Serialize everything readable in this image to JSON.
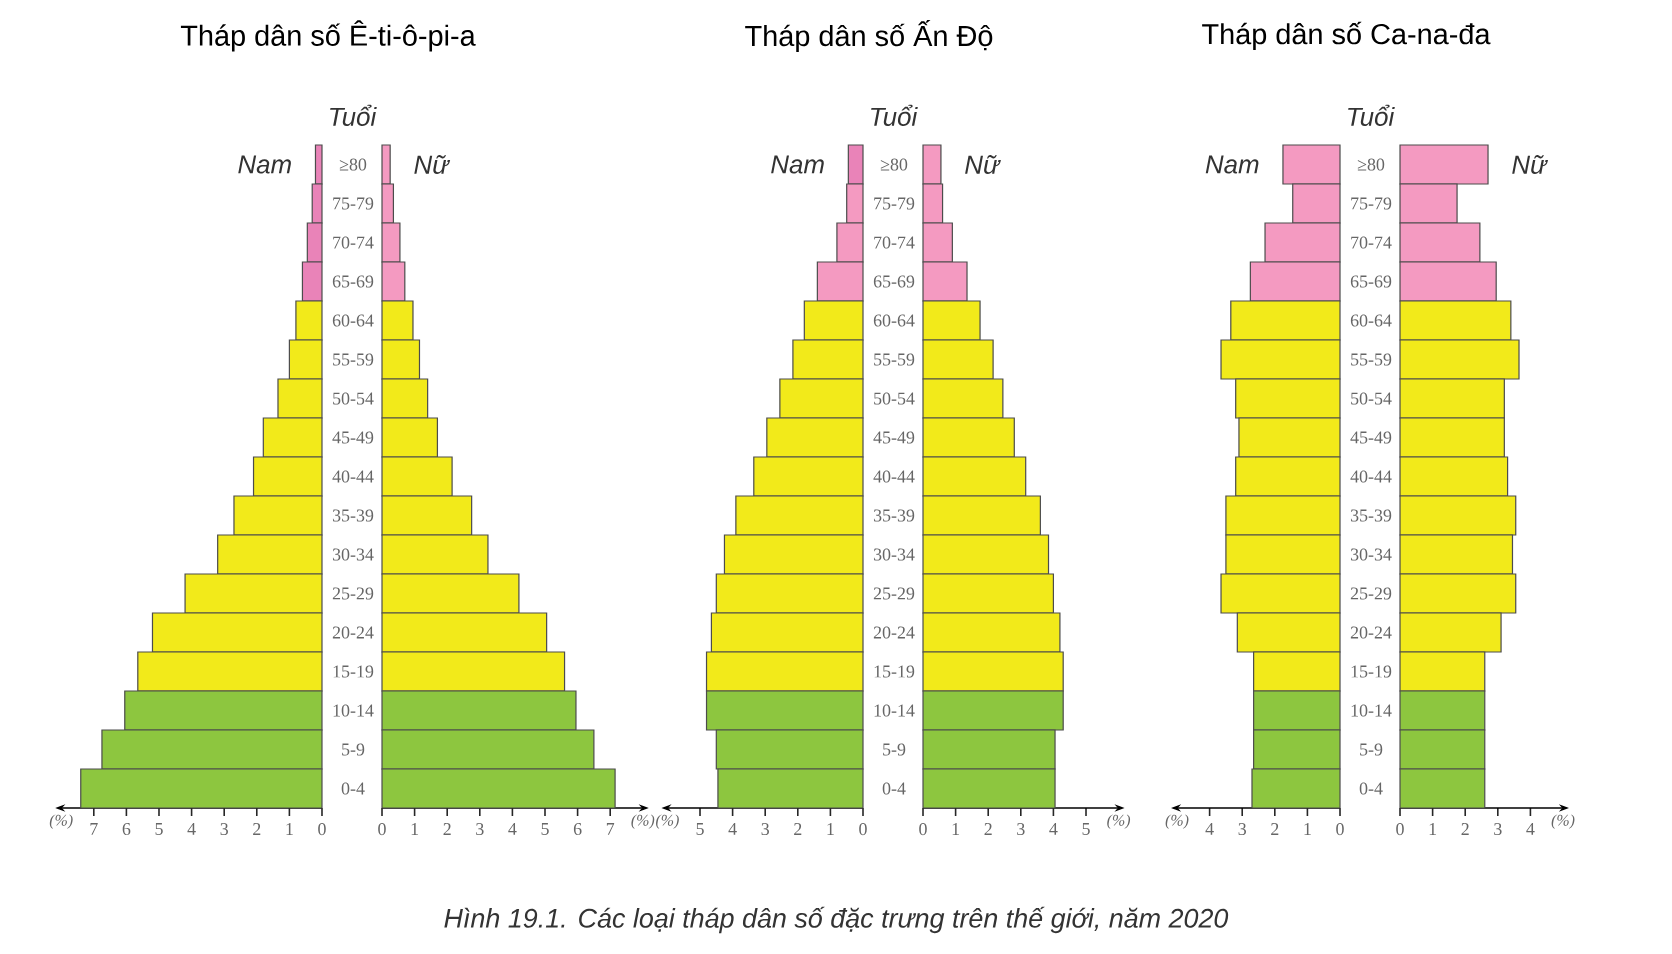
{
  "chart_data": [
    {
      "type": "bar",
      "orientation": "horizontal",
      "title": "Tháp dân số Ê-ti-ô-pi-a",
      "xlabel": "(%)",
      "annotations": [
        "Hình 19.1. Các loại tháp dân số đặc trưng trên thế giới, năm 2020"
      ],
      "categories": [
        "≥80",
        "75-79",
        "70-74",
        "65-69",
        "60-64",
        "55-59",
        "50-54",
        "45-49",
        "40-44",
        "35-39",
        "30-34",
        "25-29",
        "20-24",
        "15-19",
        "10-14",
        "5-9",
        "0-4"
      ],
      "series": [
        {
          "name": "Nam",
          "colors": [
            "#e983b8",
            "#e983b8",
            "#e983b8",
            "#e983b8",
            "#f2ea1a",
            "#f2ea1a",
            "#f2ea1a",
            "#f2ea1a",
            "#f2ea1a",
            "#f2ea1a",
            "#f2ea1a",
            "#f2ea1a",
            "#f2ea1a",
            "#f2ea1a",
            "#8dc63f",
            "#8dc63f",
            "#8dc63f"
          ],
          "values": [
            0.2,
            0.3,
            0.45,
            0.6,
            0.8,
            1.0,
            1.35,
            1.8,
            2.1,
            2.7,
            3.2,
            4.2,
            5.2,
            5.65,
            6.05,
            6.75,
            7.4
          ]
        }
      ],
      "xlim": [
        8,
        0
      ],
      "xticks": [
        0,
        1,
        2,
        3,
        4,
        5,
        6,
        7
      ],
      "tick_labels": "x"
    },
    {
      "type": "bar",
      "orientation": "horizontal",
      "xlabel": "(%)",
      "ylabel": "Tuổi",
      "categories": [
        "≥80",
        "75-79",
        "70-74",
        "65-69",
        "60-64",
        "55-59",
        "50-54",
        "45-49",
        "40-44",
        "35-39",
        "30-34",
        "25-29",
        "20-24",
        "15-19",
        "10-14",
        "5-9",
        "0-4"
      ],
      "series": [
        {
          "name": "Nữ",
          "colors": [
            "#f49ac1",
            "#f49ac1",
            "#f49ac1",
            "#f49ac1",
            "#f2ea1a",
            "#f2ea1a",
            "#f2ea1a",
            "#f2ea1a",
            "#f2ea1a",
            "#f2ea1a",
            "#f2ea1a",
            "#f2ea1a",
            "#f2ea1a",
            "#f2ea1a",
            "#8dc63f",
            "#8dc63f",
            "#8dc63f"
          ],
          "values": [
            0.25,
            0.35,
            0.55,
            0.7,
            0.95,
            1.15,
            1.4,
            1.7,
            2.15,
            2.75,
            3.25,
            4.2,
            5.05,
            5.6,
            5.95,
            6.5,
            7.15
          ]
        }
      ],
      "xlim": [
        0,
        8
      ],
      "xticks": [
        0,
        1,
        2,
        3,
        4,
        5,
        6,
        7
      ]
    },
    {
      "type": "bar",
      "orientation": "horizontal",
      "title": "Tháp dân số Ấn Độ",
      "xlabel": "(%)",
      "categories": [
        "≥80",
        "75-79",
        "70-74",
        "65-69",
        "60-64",
        "55-59",
        "50-54",
        "45-49",
        "40-44",
        "35-39",
        "30-34",
        "25-29",
        "20-24",
        "15-19",
        "10-14",
        "5-9",
        "0-4"
      ],
      "series": [
        {
          "name": "Nam",
          "colors": [
            "#e983b8",
            "#f49ac1",
            "#f49ac1",
            "#f49ac1",
            "#f2ea1a",
            "#f2ea1a",
            "#f2ea1a",
            "#f2ea1a",
            "#f2ea1a",
            "#f2ea1a",
            "#f2ea1a",
            "#f2ea1a",
            "#f2ea1a",
            "#f2ea1a",
            "#8dc63f",
            "#8dc63f",
            "#8dc63f"
          ],
          "values": [
            0.45,
            0.5,
            0.8,
            1.4,
            1.8,
            2.15,
            2.55,
            2.95,
            3.35,
            3.9,
            4.25,
            4.5,
            4.65,
            4.8,
            4.8,
            4.5,
            4.45
          ]
        }
      ],
      "xlim": [
        6,
        0
      ],
      "xticks": [
        0,
        1,
        2,
        3,
        4,
        5
      ],
      "tick_labels": "x"
    },
    {
      "type": "bar",
      "orientation": "horizontal",
      "xlabel": "(%)",
      "ylabel": "Tuổi",
      "categories": [
        "≥80",
        "75-79",
        "70-74",
        "65-69",
        "60-64",
        "55-59",
        "50-54",
        "45-49",
        "40-44",
        "35-39",
        "30-34",
        "25-29",
        "20-24",
        "15-19",
        "10-14",
        "5-9",
        "0-4"
      ],
      "series": [
        {
          "name": "Nữ",
          "colors": [
            "#f49ac1",
            "#f49ac1",
            "#f49ac1",
            "#f49ac1",
            "#f2ea1a",
            "#f2ea1a",
            "#f2ea1a",
            "#f2ea1a",
            "#f2ea1a",
            "#f2ea1a",
            "#f2ea1a",
            "#f2ea1a",
            "#f2ea1a",
            "#f2ea1a",
            "#8dc63f",
            "#8dc63f",
            "#8dc63f"
          ],
          "values": [
            0.55,
            0.6,
            0.9,
            1.35,
            1.75,
            2.15,
            2.45,
            2.8,
            3.15,
            3.6,
            3.85,
            4.0,
            4.2,
            4.3,
            4.3,
            4.05,
            4.05
          ]
        }
      ],
      "xlim": [
        0,
        6
      ],
      "xticks": [
        0,
        1,
        2,
        3,
        4,
        5
      ]
    },
    {
      "type": "bar",
      "orientation": "horizontal",
      "title": "Tháp dân số Ca-na-đa",
      "xlabel": "(%)",
      "categories": [
        "≥80",
        "75-79",
        "70-74",
        "65-69",
        "60-64",
        "55-59",
        "50-54",
        "45-49",
        "40-44",
        "35-39",
        "30-34",
        "25-29",
        "20-24",
        "15-19",
        "10-14",
        "5-9",
        "0-4"
      ],
      "series": [
        {
          "name": "Nam",
          "colors": [
            "#f49ac1",
            "#f49ac1",
            "#f49ac1",
            "#f49ac1",
            "#f2ea1a",
            "#f2ea1a",
            "#f2ea1a",
            "#f2ea1a",
            "#f2ea1a",
            "#f2ea1a",
            "#f2ea1a",
            "#f2ea1a",
            "#f2ea1a",
            "#f2ea1a",
            "#8dc63f",
            "#8dc63f",
            "#8dc63f"
          ],
          "values": [
            1.75,
            1.45,
            2.3,
            2.75,
            3.35,
            3.65,
            3.2,
            3.1,
            3.2,
            3.5,
            3.5,
            3.65,
            3.15,
            2.65,
            2.65,
            2.65,
            2.7
          ]
        }
      ],
      "xlim": [
        5,
        0
      ],
      "xticks": [
        0,
        1,
        2,
        3,
        4
      ],
      "tick_labels": "x"
    },
    {
      "type": "bar",
      "orientation": "horizontal",
      "xlabel": "(%)",
      "ylabel": "Tuổi",
      "categories": [
        "≥80",
        "75-79",
        "70-74",
        "65-69",
        "60-64",
        "55-59",
        "50-54",
        "45-49",
        "40-44",
        "35-39",
        "30-34",
        "25-29",
        "20-24",
        "15-19",
        "10-14",
        "5-9",
        "0-4"
      ],
      "series": [
        {
          "name": "Nữ",
          "colors": [
            "#f49ac1",
            "#f49ac1",
            "#f49ac1",
            "#f49ac1",
            "#f2ea1a",
            "#f2ea1a",
            "#f2ea1a",
            "#f2ea1a",
            "#f2ea1a",
            "#f2ea1a",
            "#f2ea1a",
            "#f2ea1a",
            "#f2ea1a",
            "#f2ea1a",
            "#8dc63f",
            "#8dc63f",
            "#8dc63f"
          ],
          "values": [
            2.7,
            1.75,
            2.45,
            2.95,
            3.4,
            3.65,
            3.2,
            3.2,
            3.3,
            3.55,
            3.45,
            3.55,
            3.1,
            2.6,
            2.6,
            2.6,
            2.6
          ]
        }
      ],
      "xlim": [
        0,
        5
      ],
      "xticks": [
        0,
        1,
        2,
        3,
        4
      ]
    }
  ]
}
